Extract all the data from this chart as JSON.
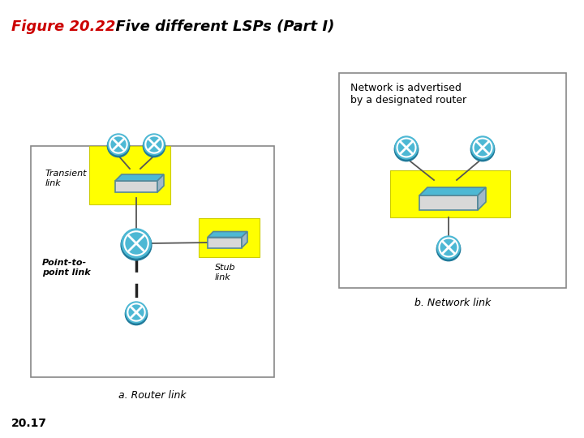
{
  "title_fig": "Figure 20.22:",
  "title_rest": "  Five different LSPs (Part I)",
  "title_color_fig": "#cc0000",
  "title_color_rest": "#000000",
  "page_number": "20.17",
  "fig_a_label": "a. Router link",
  "fig_b_label": "b. Network link",
  "fig_b_title": "Network is advertised\nby a designated router",
  "yellow": "#ffff00",
  "router_blue": "#4db8d4",
  "router_dark": "#207a9a",
  "box_top": "#4db8d4",
  "box_face": "#d8d8d8",
  "box_side": "#a0b8c8",
  "box_edge": "#558899"
}
